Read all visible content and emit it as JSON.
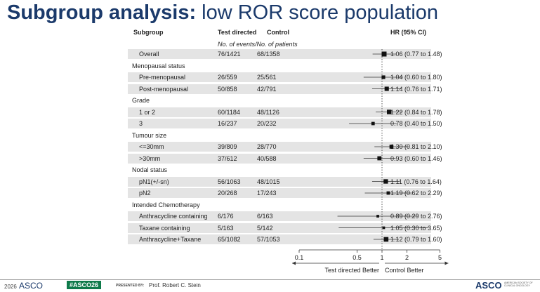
{
  "title_bold": "Subgroup analysis:",
  "title_rest": " low ROR score population",
  "headers": {
    "subgroup": "Subgroup",
    "test_directed": "Test directed",
    "control": "Control",
    "hr": "HR (95% CI)",
    "sub": "No. of events/No. of patients"
  },
  "rows": [
    {
      "label": "Overall",
      "group": false,
      "shaded": true,
      "td": "76/1421",
      "ctrl": "68/1358",
      "hr_text": "1.06 (0.77 to 1.48)"
    },
    {
      "label": "Menopausal status",
      "group": true,
      "shaded": false
    },
    {
      "label": "Pre-menopausal",
      "group": false,
      "shaded": true,
      "td": "26/559",
      "ctrl": "25/561",
      "hr_text": "1.04 (0.60 to 1.80)"
    },
    {
      "label": "Post-menopausal",
      "group": false,
      "shaded": true,
      "td": "50/858",
      "ctrl": "42/791",
      "hr_text": "1.14 (0.76 to 1.71)"
    },
    {
      "label": "Grade",
      "group": true,
      "shaded": false
    },
    {
      "label": "1 or 2",
      "group": false,
      "shaded": true,
      "td": "60/1184",
      "ctrl": "48/1126",
      "hr_text": "1.22 (0.84 to 1.78)"
    },
    {
      "label": "3",
      "group": false,
      "shaded": true,
      "td": "16/237",
      "ctrl": "20/232",
      "hr_text": "0.78 (0.40 to 1.50)"
    },
    {
      "label": "Tumour size",
      "group": true,
      "shaded": false
    },
    {
      "label": "<=30mm",
      "group": false,
      "shaded": true,
      "td": "39/809",
      "ctrl": "28/770",
      "hr_text": "1.30 (0.81 to 2.10)"
    },
    {
      "label": ">30mm",
      "group": false,
      "shaded": true,
      "td": "37/612",
      "ctrl": "40/588",
      "hr_text": "0.93 (0.60 to 1.46)"
    },
    {
      "label": "Nodal status",
      "group": true,
      "shaded": false
    },
    {
      "label": "pN1(+/-sn)",
      "group": false,
      "shaded": true,
      "td": "56/1063",
      "ctrl": "48/1015",
      "hr_text": "1.11 (0.76 to 1.64)"
    },
    {
      "label": "pN2",
      "group": false,
      "shaded": true,
      "td": "20/268",
      "ctrl": "17/243",
      "hr_text": "1.19 (0.62 to 2.29)"
    },
    {
      "label": "Intended Chemotherapy",
      "group": true,
      "shaded": false
    },
    {
      "label": "Anthracycline containing",
      "group": false,
      "shaded": true,
      "td": "6/176",
      "ctrl": "6/163",
      "hr_text": "0.89 (0.29 to 2.76)"
    },
    {
      "label": "Taxane containing",
      "group": false,
      "shaded": true,
      "td": "5/163",
      "ctrl": "5/142",
      "hr_text": "1.05 (0.30 to 3.65)"
    },
    {
      "label": "Anthracycline+Taxane",
      "group": false,
      "shaded": true,
      "td": "65/1082",
      "ctrl": "57/1053",
      "hr_text": "1.12 (0.79 to 1.60)"
    }
  ],
  "chart_data": {
    "type": "forest",
    "x_scale": "log",
    "xlim": [
      0.1,
      5
    ],
    "ticks": [
      0.1,
      0.5,
      1,
      2,
      5
    ],
    "tick_labels": [
      "0.1",
      "0.5",
      "1",
      "2",
      "5"
    ],
    "reference_line": 1,
    "left_label": "Test directed Better",
    "right_label": "Control Better",
    "points": [
      {
        "label": "Overall",
        "hr": 1.06,
        "lo": 0.77,
        "hi": 1.48,
        "events": 144
      },
      {
        "label": "Pre-menopausal",
        "hr": 1.04,
        "lo": 0.6,
        "hi": 1.8,
        "events": 51
      },
      {
        "label": "Post-menopausal",
        "hr": 1.14,
        "lo": 0.76,
        "hi": 1.71,
        "events": 92
      },
      {
        "label": "1 or 2",
        "hr": 1.22,
        "lo": 0.84,
        "hi": 1.78,
        "events": 108
      },
      {
        "label": "3",
        "hr": 0.78,
        "lo": 0.4,
        "hi": 1.5,
        "events": 36
      },
      {
        "label": "<=30mm",
        "hr": 1.3,
        "lo": 0.81,
        "hi": 2.1,
        "events": 67
      },
      {
        "label": ">30mm",
        "hr": 0.93,
        "lo": 0.6,
        "hi": 1.46,
        "events": 77
      },
      {
        "label": "pN1(+/-sn)",
        "hr": 1.11,
        "lo": 0.76,
        "hi": 1.64,
        "events": 104
      },
      {
        "label": "pN2",
        "hr": 1.19,
        "lo": 0.62,
        "hi": 2.29,
        "events": 37
      },
      {
        "label": "Anthracycline containing",
        "hr": 0.89,
        "lo": 0.29,
        "hi": 2.76,
        "events": 12
      },
      {
        "label": "Taxane containing",
        "hr": 1.05,
        "lo": 0.3,
        "hi": 3.65,
        "events": 10
      },
      {
        "label": "Anthracycline+Taxane",
        "hr": 1.12,
        "lo": 0.79,
        "hi": 1.6,
        "events": 122
      }
    ]
  },
  "footer": {
    "year": "2026",
    "asco": "ASCO",
    "hashtag": "#ASCO26",
    "presented_by": "PRESENTED BY:",
    "presenter": "Prof. Robert C. Stein",
    "logo_text": "ASCO",
    "logo_sub": "AMERICAN SOCIETY OF CLINICAL ONCOLOGY"
  },
  "colors": {
    "title": "#1b3a6b",
    "hashtag_bg": "#0e7a4a",
    "footer_line": "#9a9a9a",
    "shaded": "#e4e4e4"
  }
}
